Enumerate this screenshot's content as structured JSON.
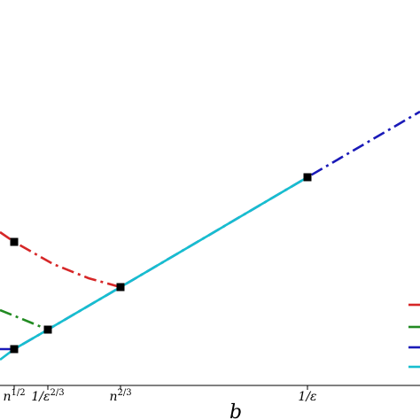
{
  "chart_data": {
    "type": "line",
    "title": "",
    "xlabel": "b",
    "ylabel": "",
    "x_ticks": [
      {
        "id": "n12",
        "base": "n",
        "sup": "1/2"
      },
      {
        "id": "eps23",
        "base": "1/ε",
        "sup": "2/3"
      },
      {
        "id": "n23",
        "base": "n",
        "sup": "2/3"
      },
      {
        "id": "eps1",
        "base": "1/ε",
        "sup": ""
      }
    ],
    "grid": false,
    "legend": {
      "position": "right (partially cropped)",
      "entries": [
        "",
        "",
        "",
        ""
      ]
    },
    "series": [
      {
        "color": "#d62728",
        "style": "dashdot",
        "points": [
          [
            0.0,
            262
          ],
          [
            16,
            273
          ],
          [
            60,
            298
          ],
          [
            100,
            314
          ],
          [
            136,
            324
          ]
        ],
        "markers": [
          [
            16,
            273
          ],
          [
            136,
            324
          ]
        ]
      },
      {
        "color": "#228b22",
        "style": "dashdot",
        "points": [
          [
            0.0,
            350
          ],
          [
            25,
            360
          ],
          [
            54,
            372
          ]
        ],
        "markers": [
          [
            54,
            372
          ]
        ]
      },
      {
        "color": "#1a1ab8",
        "style": "dashdot",
        "points": [
          [
            0.0,
            394
          ],
          [
            16,
            394
          ],
          [
            54,
            372
          ],
          [
            136,
            324
          ],
          [
            347,
            200
          ],
          [
            474,
            126
          ]
        ],
        "markers": [
          [
            16,
            394
          ],
          [
            347,
            200
          ]
        ]
      },
      {
        "color": "#17becf",
        "style": "solid",
        "points": [
          [
            0.0,
            406
          ],
          [
            16,
            394
          ],
          [
            54,
            372
          ],
          [
            136,
            324
          ],
          [
            347,
            200
          ]
        ],
        "markers": []
      }
    ],
    "legend_colors": [
      "#d62728",
      "#228b22",
      "#1a1ab8",
      "#17becf"
    ]
  }
}
